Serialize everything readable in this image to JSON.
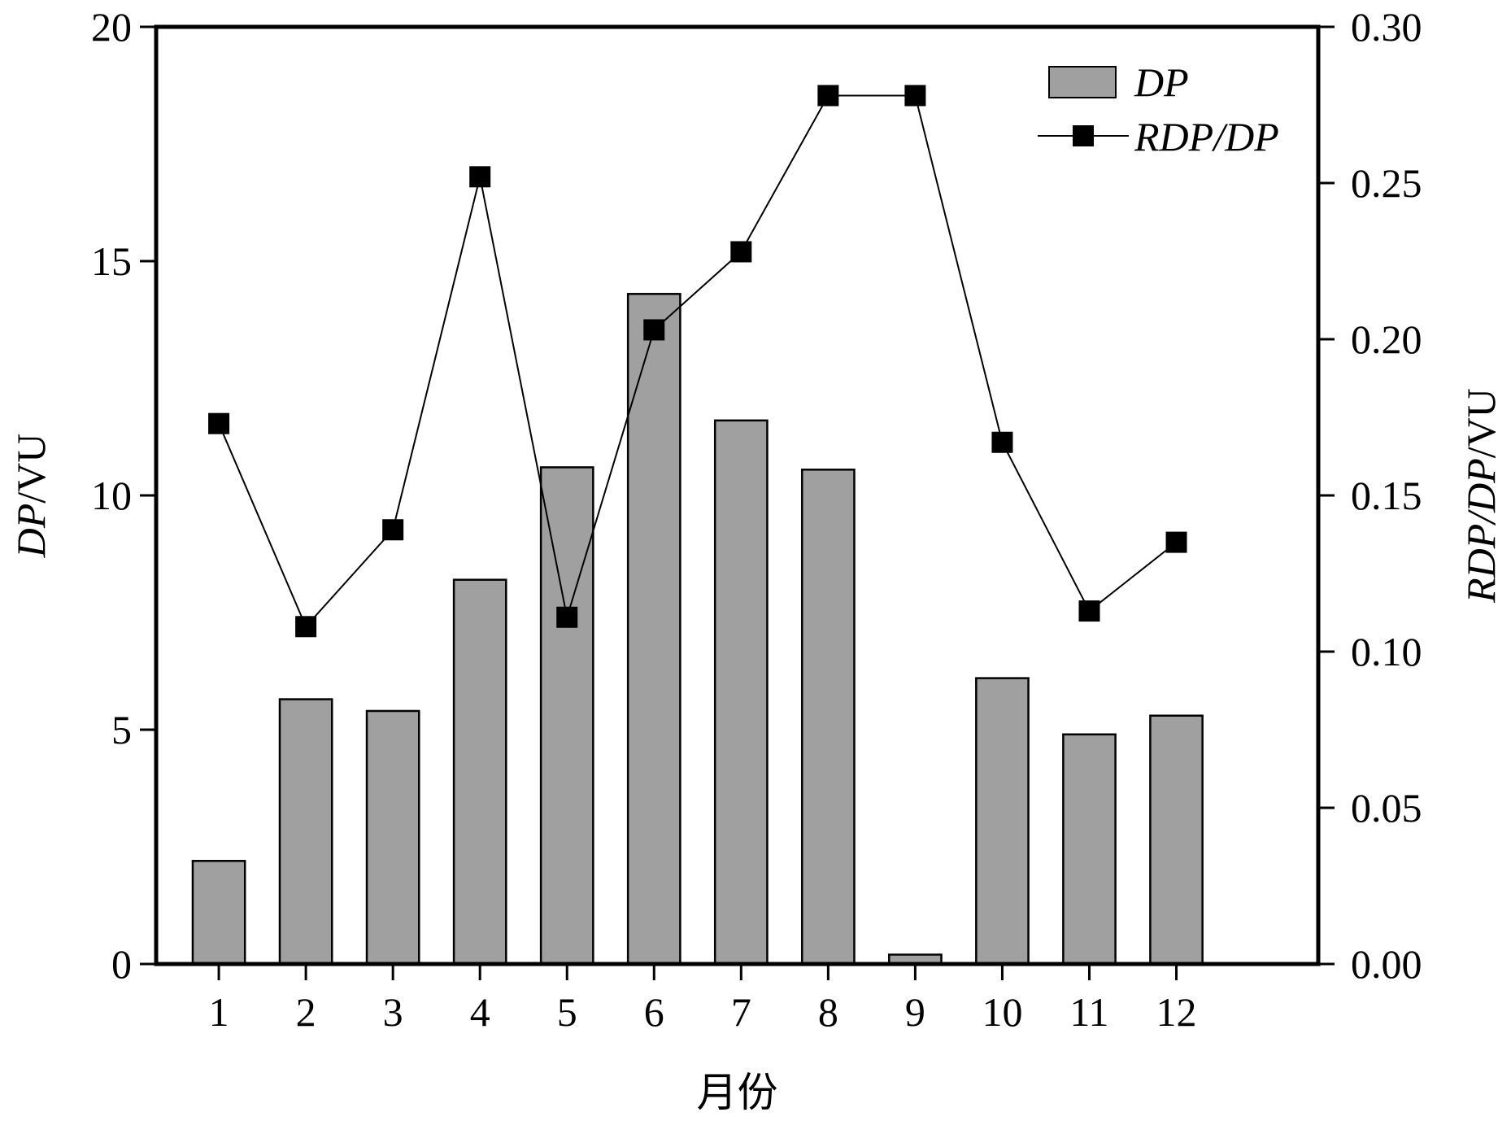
{
  "chart_data": {
    "type": "bar",
    "categories": [
      "1",
      "2",
      "3",
      "4",
      "5",
      "6",
      "7",
      "8",
      "9",
      "10",
      "11",
      "12"
    ],
    "series": [
      {
        "name": "DP",
        "type": "bar",
        "axis": "left",
        "values": [
          2.2,
          5.65,
          5.4,
          8.2,
          10.6,
          14.3,
          11.6,
          10.55,
          0.2,
          6.1,
          4.9,
          5.3
        ]
      },
      {
        "name": "RDP/DP",
        "type": "line",
        "marker": "square",
        "axis": "right",
        "values": [
          0.173,
          0.108,
          0.139,
          0.252,
          0.111,
          0.203,
          0.228,
          0.278,
          0.278,
          0.167,
          0.113,
          0.135
        ]
      }
    ],
    "xlabel": "月份",
    "ylabel_left": {
      "italic": "DP",
      "rest": "/VU"
    },
    "ylabel_right": {
      "italic": "RDP/DP",
      "rest": "/VU"
    },
    "ylim_left": [
      0,
      20
    ],
    "yticks_left": [
      "0",
      "5",
      "10",
      "15",
      "20"
    ],
    "ylim_right": [
      0,
      0.3
    ],
    "yticks_right": [
      "0.00",
      "0.05",
      "0.10",
      "0.15",
      "0.20",
      "0.25",
      "0.30"
    ],
    "grid": false,
    "legend": "top-right",
    "bar_color": "#a0a0a0",
    "line_color": "#000000"
  }
}
